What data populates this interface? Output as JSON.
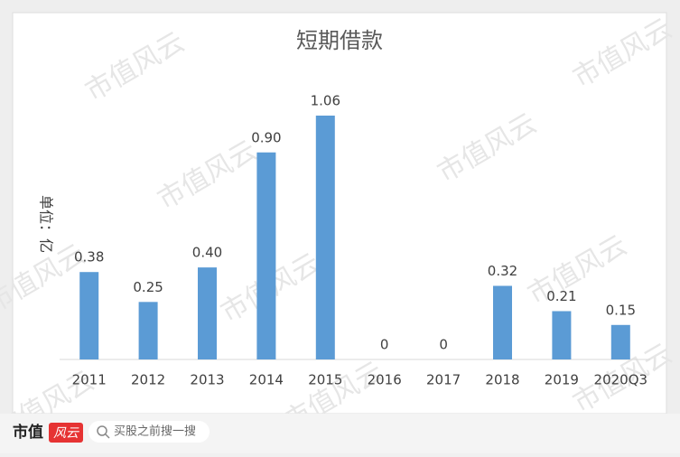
{
  "chart_data": {
    "type": "bar",
    "title": "短期借款",
    "y_label": "单位：亿",
    "categories": [
      "2011",
      "2012",
      "2013",
      "2014",
      "2015",
      "2016",
      "2017",
      "2018",
      "2019",
      "2020Q3"
    ],
    "values": [
      0.38,
      0.25,
      0.4,
      0.9,
      1.06,
      0,
      0,
      0.32,
      0.21,
      0.15
    ],
    "value_labels": [
      "0.38",
      "0.25",
      "0.40",
      "0.90",
      "1.06",
      "0",
      "0",
      "0.32",
      "0.21",
      "0.15"
    ],
    "color": "#5b9bd5"
  },
  "watermark": "市值风云",
  "footer": {
    "brand": "市值",
    "brand_mark": "风云",
    "search": "买股之前搜一搜"
  }
}
